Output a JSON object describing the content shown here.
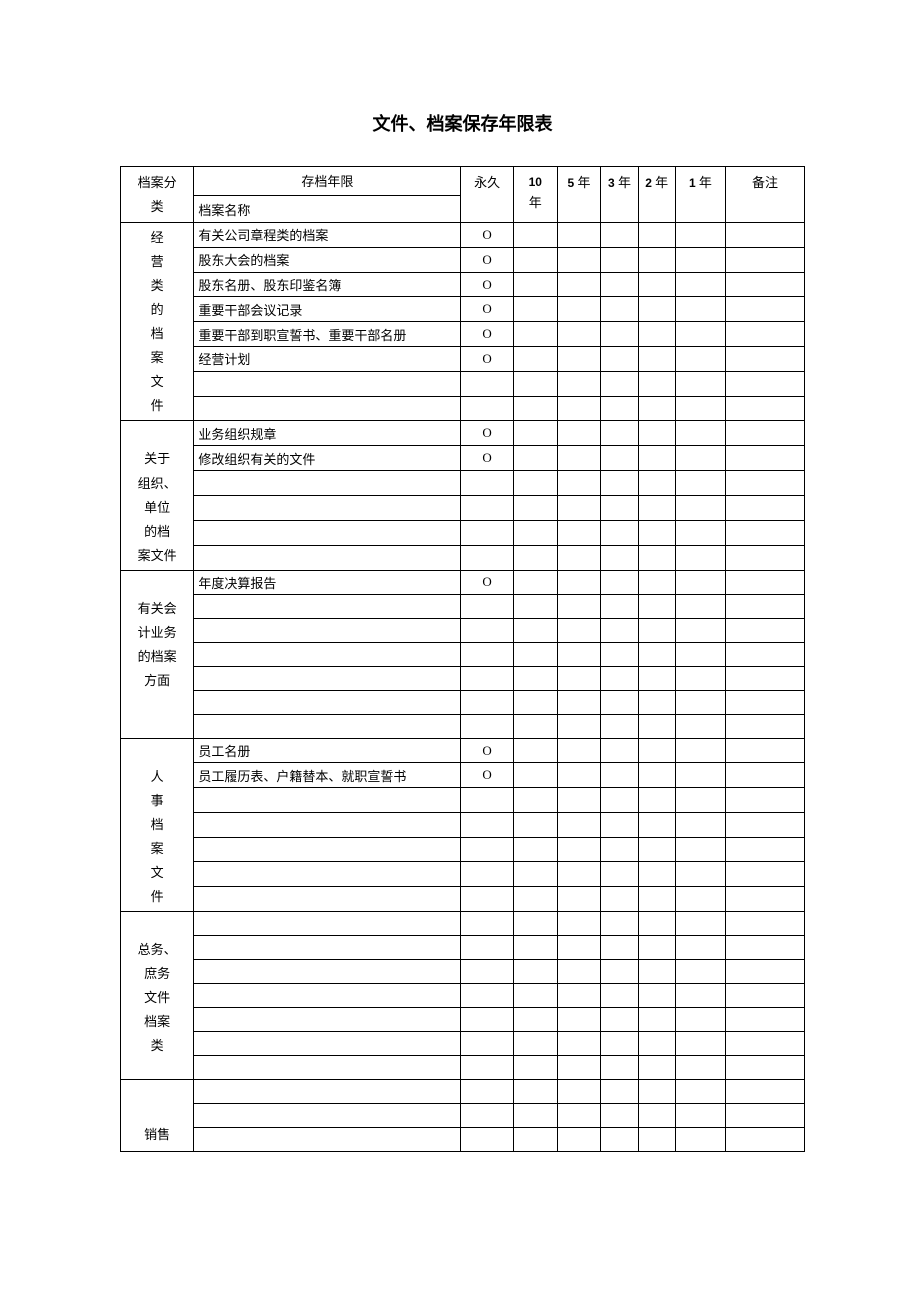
{
  "title": "文件、档案保存年限表",
  "table": {
    "header": {
      "topRight": "存档年限",
      "bottomLeft": "档案名称",
      "catTop": "档案分",
      "catBot": "类",
      "cols": {
        "perm": "永久",
        "y10": "10 年",
        "y5": "5 年",
        "y3": "3 年",
        "y2": "2 年",
        "y1": "1 年",
        "note": "备注"
      }
    },
    "mark": "O",
    "sections": [
      {
        "category": "经 营 类 的 档 案 文 件",
        "rows": [
          {
            "name": "有关公司章程类的档案",
            "perm": true
          },
          {
            "name": "股东大会的档案",
            "perm": true
          },
          {
            "name": "股东名册、股东印鉴名簿",
            "perm": true
          },
          {
            "name": "重要干部会议记录",
            "perm": true
          },
          {
            "name": "重要干部到职宣誓书、重要干部名册",
            "perm": true
          },
          {
            "name": "经营计划",
            "perm": true
          },
          {
            "name": ""
          },
          {
            "name": ""
          }
        ]
      },
      {
        "category": "关于 组织、 单位 的档 案文件",
        "catStyle": "below",
        "rows": [
          {
            "name": "业务组织规章",
            "perm": true
          },
          {
            "name": "修改组织有关的文件",
            "perm": true
          },
          {
            "name": ""
          },
          {
            "name": ""
          },
          {
            "name": ""
          },
          {
            "name": ""
          }
        ]
      },
      {
        "category": "有关会 计业务 的档案 方面",
        "catStyle": "below",
        "rows": [
          {
            "name": "年度决算报告",
            "perm": true
          },
          {
            "name": ""
          },
          {
            "name": ""
          },
          {
            "name": ""
          },
          {
            "name": ""
          },
          {
            "name": ""
          },
          {
            "name": ""
          }
        ]
      },
      {
        "category": "人 事 档 案 文 件",
        "catStyle": "below",
        "rows": [
          {
            "name": "员工名册",
            "perm": true
          },
          {
            "name": "员工履历表、户籍替本、就职宣誓书",
            "perm": true
          },
          {
            "name": ""
          },
          {
            "name": ""
          },
          {
            "name": ""
          },
          {
            "name": ""
          },
          {
            "name": ""
          }
        ]
      },
      {
        "category": "总务、 庶务 文件 档案 类",
        "catStyle": "below",
        "rows": [
          {
            "name": ""
          },
          {
            "name": ""
          },
          {
            "name": ""
          },
          {
            "name": ""
          },
          {
            "name": ""
          },
          {
            "name": ""
          },
          {
            "name": ""
          }
        ]
      },
      {
        "category": "销售",
        "catStyle": "bottom",
        "rows": [
          {
            "name": ""
          },
          {
            "name": ""
          },
          {
            "name": ""
          }
        ]
      }
    ]
  }
}
